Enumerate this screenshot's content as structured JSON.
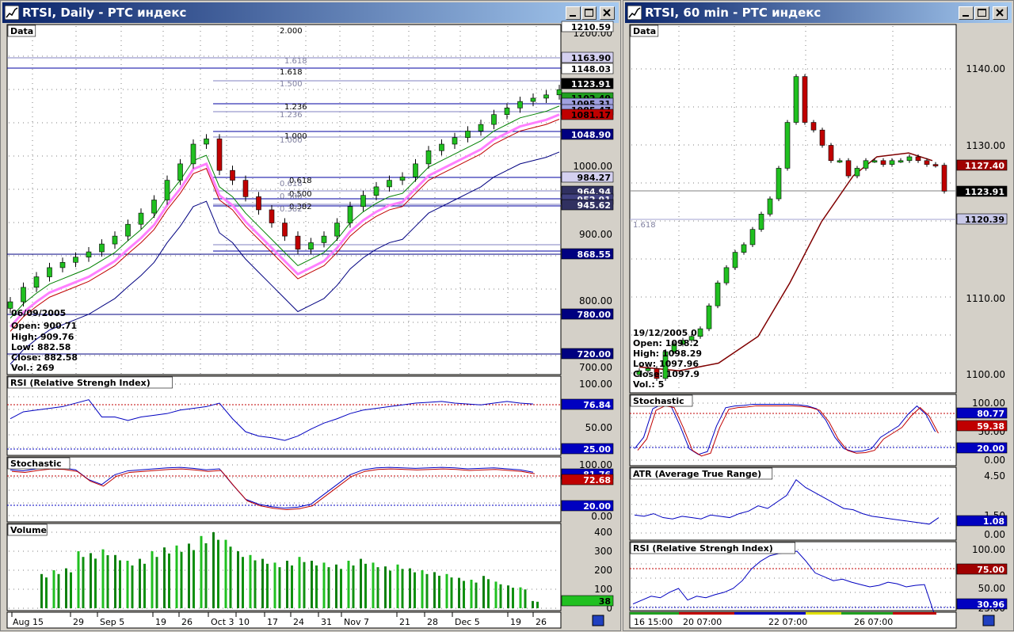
{
  "left": {
    "title": "RTSI, Daily - РТС индекс",
    "panels": {
      "data": "Data",
      "rsi": "RSI (Relative Strengh Index)",
      "stoch": "Stochastic",
      "volume": "Volume"
    },
    "price_ticks": [
      "1200.00",
      "1000.00",
      "900.00",
      "800.00",
      "700.00"
    ],
    "price_tags": [
      "1210.59",
      "1163.90",
      "1148.03",
      "1123.91",
      "1102.49",
      "1095.31",
      "1085.47",
      "1081.17",
      "1048.90",
      "984.27",
      "964.94",
      "952.91",
      "945.62",
      "868.55",
      "780.00",
      "720.00"
    ],
    "fib_labels": [
      "1.618",
      "1.618",
      "1.500",
      "1.236",
      "1.236",
      "1.000",
      "1.000",
      "0.618",
      "0.618",
      "0.500",
      "0.500",
      "0.382",
      "0.382",
      "2.000"
    ],
    "ohlc": {
      "date": "06/09/2005",
      "open": "Open: 900.71",
      "high": "High: 909.76",
      "low": "Low: 882.58",
      "close": "Close: 882.58",
      "vol": "Vol.: 269"
    },
    "rsi_ticks": [
      "100.00",
      "50.00"
    ],
    "rsi_tags": [
      "76.84",
      "25.00"
    ],
    "stoch_ticks": [
      "100.00",
      "0.00"
    ],
    "stoch_tags": [
      "81.76",
      "72.68",
      "20.00"
    ],
    "volume_ticks": [
      "400",
      "300",
      "200",
      "100",
      "0"
    ],
    "volume_tag": "38",
    "dates": [
      "Aug 15",
      "29",
      "Sep 5",
      "19",
      "26",
      "Oct 3",
      "10",
      "17",
      "24",
      "31",
      "Nov 7",
      "21",
      "28",
      "Dec 5",
      "19",
      "26"
    ]
  },
  "right": {
    "title": "RTSI, 60 min - РТС индекс",
    "panels": {
      "data": "Data",
      "stoch": "Stochastic",
      "atr": "ATR (Average True Range)",
      "rsi": "RSI (Relative Strengh Index)"
    },
    "price_ticks": [
      "1140.00",
      "1130.00",
      "1110.00",
      "1100.00"
    ],
    "price_tags": [
      "1127.40",
      "1123.91",
      "1120.39"
    ],
    "fib_label": "1.618",
    "ohlc": {
      "date": "19/12/2005 0",
      "open": "Open: 1098.2",
      "high": "High: 1098.29",
      "low": "Low: 1097.96",
      "close": "Close: 1097.9",
      "vol": "Vol.: 5"
    },
    "stoch_ticks": [
      "100.00",
      "50.00",
      "0.00"
    ],
    "stoch_tags": [
      "80.77",
      "59.38",
      "20.00"
    ],
    "atr_ticks": [
      "4.50",
      "1.50",
      "0.00"
    ],
    "atr_tag": "1.08",
    "rsi_ticks": [
      "100.00",
      "50.00",
      "25.00"
    ],
    "rsi_tags": [
      "75.00",
      "30.96"
    ],
    "dates": [
      "16 15:00",
      "20 07:00",
      "22 07:00",
      "26 07:00"
    ]
  },
  "chart_data": [
    {
      "type": "candlestick",
      "title": "RTSI, Daily - РТС индекс",
      "ylim": [
        680,
        1225
      ],
      "x": [
        "Aug 15",
        "29",
        "Sep 5",
        "19",
        "26",
        "Oct 3",
        "10",
        "17",
        "24",
        "31",
        "Nov 7",
        "21",
        "28",
        "Dec 5",
        "19",
        "26"
      ],
      "close_approx": [
        800,
        822,
        838,
        852,
        860,
        868,
        876,
        888,
        900,
        918,
        935,
        955,
        985,
        1010,
        1040,
        1048,
        1000,
        985,
        960,
        940,
        920,
        900,
        880,
        890,
        900,
        920,
        945,
        962,
        975,
        985,
        990,
        1010,
        1030,
        1040,
        1050,
        1060,
        1070,
        1085,
        1095,
        1105,
        1110,
        1115,
        1123
      ],
      "rsi_approx": [
        60,
        68,
        70,
        72,
        74,
        78,
        82,
        62,
        62,
        58,
        62,
        64,
        66,
        70,
        72,
        74,
        78,
        60,
        45,
        40,
        38,
        35,
        40,
        48,
        55,
        60,
        66,
        70,
        72,
        74,
        76,
        78,
        79,
        80,
        78,
        77,
        76,
        78,
        80,
        78,
        77
      ],
      "volume_approx": [
        180,
        200,
        210,
        300,
        290,
        310,
        280,
        250,
        260,
        300,
        320,
        330,
        340,
        380,
        400,
        360,
        300,
        280,
        260,
        240,
        250,
        270,
        250,
        240,
        230,
        250,
        260,
        240,
        220,
        230,
        210,
        200,
        190,
        180,
        160,
        150,
        170,
        140,
        120,
        110,
        38
      ]
    },
    {
      "type": "candlestick",
      "title": "RTSI, 60 min - РТС индекс",
      "ylim": [
        1098,
        1144
      ],
      "x": [
        "16 15:00",
        "20 07:00",
        "22 07:00",
        "26 07:00"
      ],
      "close_approx": [
        1100.5,
        1100.8,
        1099.5,
        1103,
        1104,
        1104.5,
        1105,
        1106,
        1109,
        1112,
        1114,
        1116,
        1117,
        1119,
        1121,
        1123,
        1127,
        1133,
        1139,
        1133,
        1132,
        1130,
        1128,
        1128,
        1126,
        1127,
        1128,
        1128,
        1127.5,
        1128,
        1128,
        1128.5,
        1128,
        1127.5,
        1127.4,
        1124
      ]
    }
  ]
}
